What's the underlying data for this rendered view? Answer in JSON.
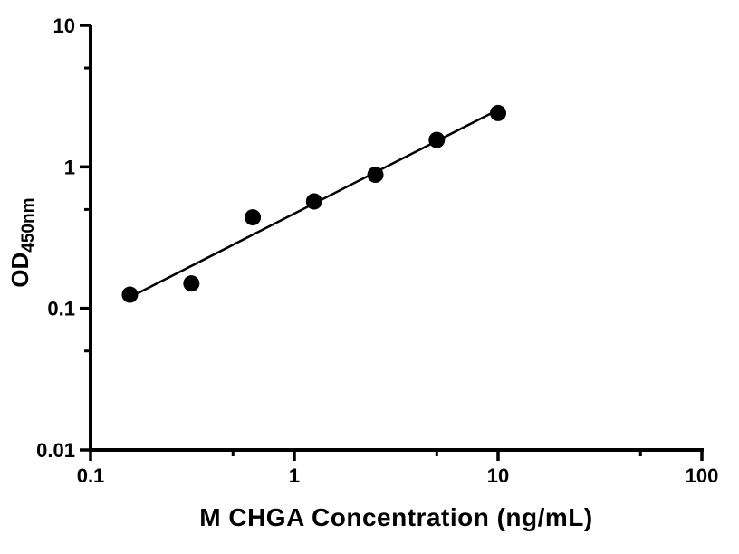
{
  "figure": {
    "background": "#ffffff"
  },
  "chart_data": {
    "type": "scatter",
    "title": "",
    "xlabel": "M CHGA Concentration (ng/mL)",
    "ylabel": "OD450nm",
    "ylabel_base": "OD",
    "ylabel_sub": "450nm",
    "xscale": "log",
    "yscale": "log",
    "xlim": [
      0.1,
      100
    ],
    "ylim": [
      0.01,
      10
    ],
    "x": [
      0.156,
      0.3125,
      0.625,
      1.25,
      2.5,
      5,
      10
    ],
    "y": [
      0.125,
      0.15,
      0.44,
      0.57,
      0.88,
      1.55,
      2.4
    ],
    "x_ticks": {
      "values": [
        0.1,
        1,
        10,
        100
      ],
      "labels": [
        "0.1",
        "1",
        "10",
        "100"
      ]
    },
    "y_ticks": {
      "values": [
        0.01,
        0.1,
        1,
        10
      ],
      "labels": [
        "0.01",
        "0.1",
        "1",
        "10"
      ]
    },
    "x_minor_ticks": [
      0.5,
      5,
      50
    ],
    "y_minor_ticks": [
      0.05,
      0.5,
      5
    ],
    "marker_color": "#000000",
    "line_color": "#000000",
    "axis_color": "#000000",
    "fit": "linear-loglog",
    "grid": false,
    "legend": "none"
  }
}
